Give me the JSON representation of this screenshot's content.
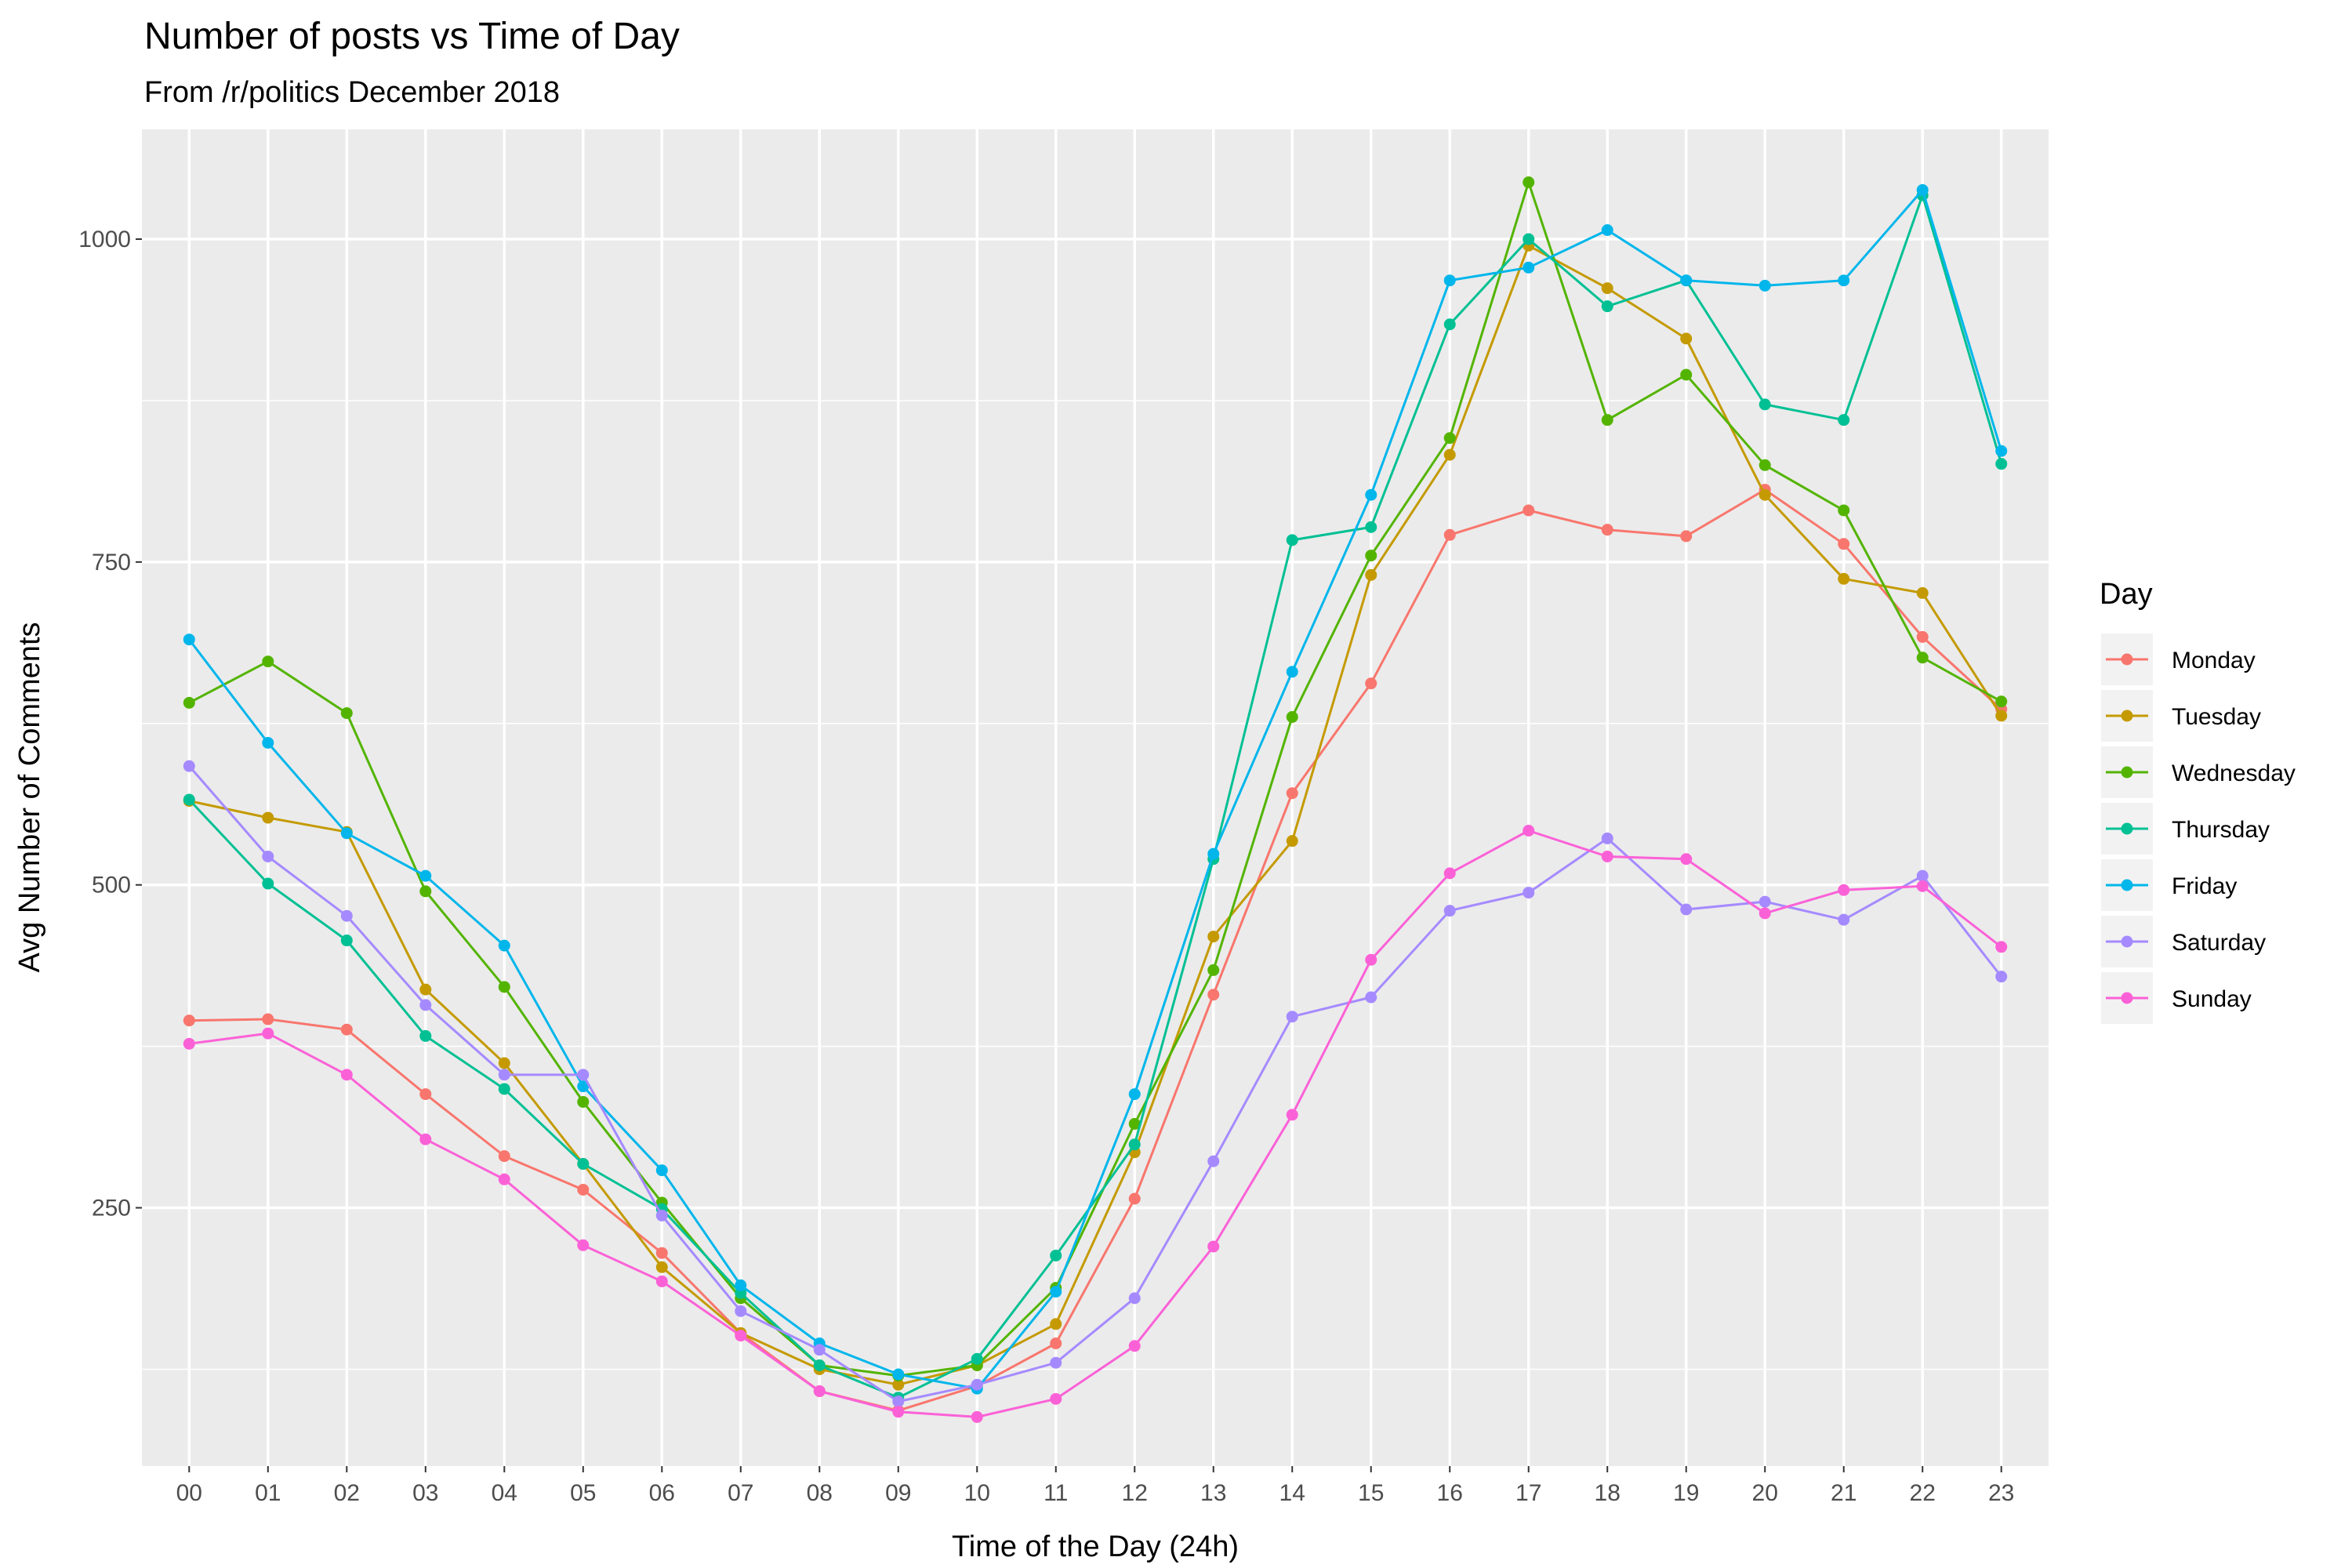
{
  "chart_data": {
    "type": "line",
    "title": "Number of posts vs Time of Day",
    "subtitle": "From /r/politics December 2018",
    "xlabel": "Time of the Day (24h)",
    "ylabel": "Avg Number of Comments",
    "categories": [
      "00",
      "01",
      "02",
      "03",
      "04",
      "05",
      "06",
      "07",
      "08",
      "09",
      "10",
      "11",
      "12",
      "13",
      "14",
      "15",
      "16",
      "17",
      "18",
      "19",
      "20",
      "21",
      "22",
      "23"
    ],
    "ylim": [
      50,
      1085
    ],
    "yticks": [
      250,
      500,
      750,
      1000
    ],
    "grid": true,
    "legend_title": "Day",
    "legend_position": "right",
    "series": [
      {
        "name": "Monday",
        "color": "#F8766D",
        "values": [
          395,
          396,
          388,
          338,
          290,
          264,
          215,
          153,
          108,
          93,
          112,
          145,
          257,
          415,
          571,
          656,
          771,
          790,
          775,
          770,
          806,
          764,
          692,
          636
        ]
      },
      {
        "name": "Tuesday",
        "color": "#C49A00",
        "values": [
          565,
          552,
          541,
          419,
          362,
          284,
          204,
          153,
          125,
          113,
          128,
          160,
          293,
          460,
          534,
          740,
          833,
          995,
          962,
          923,
          802,
          737,
          726,
          631
        ]
      },
      {
        "name": "Wednesday",
        "color": "#53B400",
        "values": [
          641,
          673,
          633,
          495,
          421,
          332,
          254,
          180,
          128,
          120,
          128,
          188,
          315,
          434,
          630,
          755,
          846,
          1044,
          860,
          895,
          825,
          790,
          676,
          642
        ]
      },
      {
        "name": "Thursday",
        "color": "#00C094",
        "values": [
          566,
          501,
          457,
          383,
          342,
          284,
          249,
          184,
          128,
          103,
          133,
          213,
          299,
          520,
          767,
          777,
          934,
          1000,
          948,
          968,
          872,
          860,
          1034,
          826
        ]
      },
      {
        "name": "Friday",
        "color": "#00B6EB",
        "values": [
          690,
          610,
          540,
          507,
          453,
          344,
          279,
          190,
          145,
          121,
          110,
          185,
          338,
          524,
          665,
          802,
          968,
          978,
          1007,
          968,
          964,
          968,
          1038,
          836
        ]
      },
      {
        "name": "Saturday",
        "color": "#A58AFF",
        "values": [
          592,
          522,
          476,
          407,
          353,
          353,
          244,
          170,
          140,
          100,
          113,
          130,
          180,
          286,
          398,
          413,
          480,
          494,
          536,
          481,
          487,
          473,
          507,
          429
        ]
      },
      {
        "name": "Sunday",
        "color": "#FB61D7",
        "values": [
          377,
          385,
          353,
          303,
          272,
          221,
          193,
          151,
          108,
          92,
          88,
          102,
          143,
          220,
          322,
          442,
          509,
          542,
          522,
          520,
          478,
          496,
          499,
          452
        ]
      }
    ]
  }
}
